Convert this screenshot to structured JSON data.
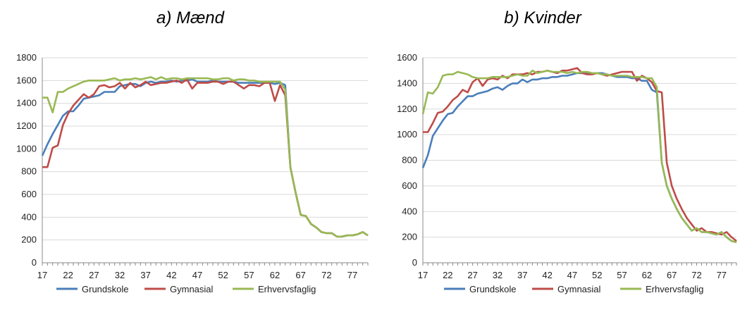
{
  "colors": {
    "series": [
      "#4A7EBB",
      "#BE4B48",
      "#98B954"
    ],
    "grid": "#d9d9d9",
    "axis": "#888888"
  },
  "chart_data": [
    {
      "type": "line",
      "title": "a) Mænd",
      "xlabel": "",
      "ylabel": "",
      "xlim": [
        17,
        80
      ],
      "ylim": [
        0,
        1800
      ],
      "x_ticks": [
        17,
        22,
        27,
        32,
        37,
        42,
        47,
        52,
        57,
        62,
        67,
        72,
        77
      ],
      "y_ticks": [
        0,
        200,
        400,
        600,
        800,
        1000,
        1200,
        1400,
        1600,
        1800
      ],
      "grid": true,
      "legend_position": "bottom",
      "x": [
        17,
        18,
        19,
        20,
        21,
        22,
        23,
        24,
        25,
        26,
        27,
        28,
        29,
        30,
        31,
        32,
        33,
        34,
        35,
        36,
        37,
        38,
        39,
        40,
        41,
        42,
        43,
        44,
        45,
        46,
        47,
        48,
        49,
        50,
        51,
        52,
        53,
        54,
        55,
        56,
        57,
        58,
        59,
        60,
        61,
        62,
        63,
        64,
        65,
        66,
        67,
        68,
        69,
        70,
        71,
        72,
        73,
        74,
        75,
        76,
        77,
        78,
        79,
        80
      ],
      "series": [
        {
          "name": "Grundskole",
          "values": [
            940,
            1040,
            1130,
            1210,
            1290,
            1330,
            1330,
            1380,
            1440,
            1450,
            1460,
            1470,
            1500,
            1500,
            1500,
            1550,
            1560,
            1570,
            1570,
            1550,
            1580,
            1590,
            1580,
            1590,
            1590,
            1600,
            1590,
            1600,
            1600,
            1610,
            1590,
            1590,
            1590,
            1600,
            1590,
            1590,
            1590,
            1590,
            1580,
            1580,
            1580,
            1580,
            1580,
            1580,
            1580,
            1570,
            1580,
            1560,
            840,
            620,
            420,
            410,
            340,
            310,
            270,
            260,
            260,
            230,
            230,
            240,
            240,
            250,
            270,
            240
          ]
        },
        {
          "name": "Gymnasial",
          "values": [
            840,
            840,
            1010,
            1030,
            1210,
            1310,
            1380,
            1430,
            1480,
            1450,
            1480,
            1550,
            1560,
            1540,
            1550,
            1580,
            1530,
            1580,
            1540,
            1560,
            1590,
            1560,
            1570,
            1580,
            1580,
            1590,
            1600,
            1580,
            1610,
            1530,
            1580,
            1580,
            1580,
            1590,
            1590,
            1570,
            1590,
            1590,
            1560,
            1530,
            1560,
            1560,
            1550,
            1580,
            1580,
            1420,
            1560,
            1470,
            840,
            620,
            420,
            410,
            340,
            310,
            270,
            260,
            260,
            230,
            230,
            240,
            240,
            250,
            270,
            240
          ]
        },
        {
          "name": "Erhvervsfaglig",
          "values": [
            1450,
            1450,
            1320,
            1500,
            1500,
            1530,
            1550,
            1570,
            1590,
            1600,
            1600,
            1600,
            1600,
            1610,
            1620,
            1600,
            1610,
            1610,
            1620,
            1610,
            1620,
            1630,
            1610,
            1630,
            1610,
            1620,
            1620,
            1610,
            1620,
            1620,
            1620,
            1620,
            1620,
            1610,
            1610,
            1620,
            1620,
            1600,
            1610,
            1610,
            1600,
            1600,
            1590,
            1590,
            1590,
            1590,
            1590,
            1520,
            840,
            620,
            420,
            410,
            340,
            310,
            270,
            260,
            260,
            230,
            230,
            240,
            240,
            250,
            270,
            240
          ]
        }
      ]
    },
    {
      "type": "line",
      "title": "b) Kvinder",
      "xlabel": "",
      "ylabel": "",
      "xlim": [
        17,
        80
      ],
      "ylim": [
        0,
        1600
      ],
      "x_ticks": [
        17,
        22,
        27,
        32,
        37,
        42,
        47,
        52,
        57,
        62,
        67,
        72,
        77
      ],
      "y_ticks": [
        0,
        200,
        400,
        600,
        800,
        1000,
        1200,
        1400,
        1600
      ],
      "grid": true,
      "legend_position": "bottom",
      "x": [
        17,
        18,
        19,
        20,
        21,
        22,
        23,
        24,
        25,
        26,
        27,
        28,
        29,
        30,
        31,
        32,
        33,
        34,
        35,
        36,
        37,
        38,
        39,
        40,
        41,
        42,
        43,
        44,
        45,
        46,
        47,
        48,
        49,
        50,
        51,
        52,
        53,
        54,
        55,
        56,
        57,
        58,
        59,
        60,
        61,
        62,
        63,
        64,
        65,
        66,
        67,
        68,
        69,
        70,
        71,
        72,
        73,
        74,
        75,
        76,
        77,
        78,
        79,
        80
      ],
      "series": [
        {
          "name": "Grundskole",
          "values": [
            740,
            840,
            990,
            1050,
            1110,
            1160,
            1170,
            1220,
            1260,
            1300,
            1300,
            1320,
            1330,
            1340,
            1360,
            1370,
            1350,
            1380,
            1400,
            1400,
            1430,
            1410,
            1430,
            1430,
            1440,
            1440,
            1450,
            1450,
            1460,
            1460,
            1470,
            1480,
            1480,
            1480,
            1480,
            1480,
            1480,
            1470,
            1460,
            1450,
            1450,
            1450,
            1440,
            1440,
            1420,
            1420,
            1350,
            1330,
            780,
            600,
            500,
            420,
            350,
            300,
            250,
            270,
            240,
            240,
            230,
            220,
            240,
            200,
            170,
            160
          ]
        },
        {
          "name": "Gymnasial",
          "values": [
            1020,
            1020,
            1090,
            1170,
            1180,
            1220,
            1270,
            1300,
            1350,
            1330,
            1410,
            1440,
            1380,
            1430,
            1440,
            1430,
            1460,
            1440,
            1470,
            1470,
            1470,
            1480,
            1470,
            1490,
            1490,
            1500,
            1490,
            1480,
            1500,
            1500,
            1510,
            1520,
            1480,
            1470,
            1470,
            1480,
            1470,
            1460,
            1470,
            1480,
            1490,
            1490,
            1490,
            1420,
            1460,
            1440,
            1410,
            1340,
            1330,
            780,
            600,
            500,
            420,
            350,
            300,
            250,
            270,
            240,
            240,
            230,
            220,
            240,
            200,
            170
          ]
        },
        {
          "name": "Erhvervsfaglig",
          "values": [
            1160,
            1330,
            1320,
            1370,
            1460,
            1470,
            1470,
            1490,
            1480,
            1470,
            1450,
            1440,
            1440,
            1440,
            1450,
            1450,
            1450,
            1450,
            1460,
            1470,
            1460,
            1460,
            1500,
            1480,
            1490,
            1500,
            1490,
            1490,
            1490,
            1480,
            1490,
            1480,
            1490,
            1490,
            1480,
            1480,
            1470,
            1470,
            1460,
            1460,
            1460,
            1460,
            1450,
            1450,
            1450,
            1440,
            1440,
            1370,
            780,
            600,
            500,
            420,
            350,
            300,
            250,
            270,
            240,
            240,
            230,
            220,
            240,
            200,
            170,
            160
          ]
        }
      ]
    }
  ]
}
